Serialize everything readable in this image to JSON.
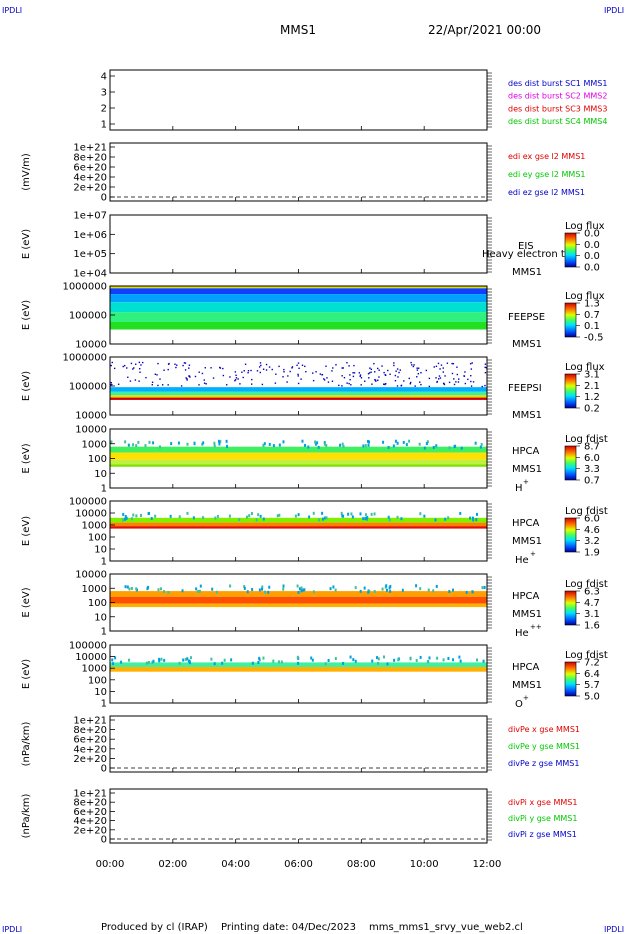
{
  "header": {
    "corner_label": "IPDLI",
    "spacecraft": "MMS1",
    "datetime": "22/Apr/2021 00:00"
  },
  "footer": {
    "produced_by": "Produced by cl (IRAP)",
    "printing_date": "Printing date: 04/Dec/2023",
    "script_name": "mms_mms1_srvy_vue_web2.cl"
  },
  "x_axis": {
    "ticks": [
      "00:00",
      "02:00",
      "04:00",
      "06:00",
      "08:00",
      "10:00",
      "12:00"
    ],
    "range_hours": [
      0,
      12
    ]
  },
  "colors": {
    "blue": "#0000c8",
    "magenta": "#e000e0",
    "red": "#e00000",
    "green": "#00c800"
  },
  "chart_data": [
    {
      "id": "p1",
      "type": "line",
      "ylabel": "",
      "yticks": [
        "4",
        "3",
        "2",
        "1"
      ],
      "series": [
        {
          "name": "des dist burst SC1 MMS1",
          "color": "#0000c8",
          "values": []
        },
        {
          "name": "des dist burst SC2 MMS2",
          "color": "#e000e0",
          "values": []
        },
        {
          "name": "des dist burst SC3 MMS3",
          "color": "#e00000",
          "values": []
        },
        {
          "name": "des dist burst SC4 MMS4",
          "color": "#00c800",
          "values": []
        }
      ]
    },
    {
      "id": "p2",
      "type": "line",
      "ylabel": "(mV/m)",
      "yticks": [
        "1e+21",
        "8e+20",
        "6e+20",
        "4e+20",
        "2e+20",
        "0"
      ],
      "series": [
        {
          "name": "edi ex gse l2 MMS1",
          "color": "#e00000",
          "values": []
        },
        {
          "name": "edi ey gse l2 MMS1",
          "color": "#00c800",
          "values": []
        },
        {
          "name": "edi ez gse l2 MMS1",
          "color": "#0000c8",
          "values": []
        }
      ]
    },
    {
      "id": "p3",
      "type": "heatmap",
      "ylabel": "E (eV)",
      "yticks": [
        "1e+07",
        "1e+06",
        "1e+05",
        "1e+04"
      ],
      "instrument": [
        "EIS",
        "MMS1"
      ],
      "extra_label": "Heavy electron tof",
      "colorbar_title": "Log flux",
      "colorbar_ticks": [
        "0.0",
        "0.0",
        "0.0",
        "0.0"
      ]
    },
    {
      "id": "p4",
      "type": "heatmap",
      "ylabel": "E (eV)",
      "yticks": [
        "1000000",
        "100000",
        "10000"
      ],
      "instrument": [
        "FEEPSE",
        "MMS1"
      ],
      "colorbar_title": "Log flux",
      "colorbar_ticks": [
        "1.3",
        "0.7",
        "0.1",
        "-0.5"
      ]
    },
    {
      "id": "p5",
      "type": "heatmap",
      "ylabel": "E (eV)",
      "yticks": [
        "1000000",
        "100000",
        "10000"
      ],
      "instrument": [
        "FEEPSI",
        "MMS1"
      ],
      "colorbar_title": "Log flux",
      "colorbar_ticks": [
        "3.1",
        "2.1",
        "1.2",
        "0.2"
      ]
    },
    {
      "id": "p6",
      "type": "heatmap",
      "ylabel": "E (eV)",
      "yticks": [
        "10000",
        "1000",
        "100",
        "10",
        "1"
      ],
      "instrument": [
        "HPCA",
        "MMS1"
      ],
      "species": "H",
      "species_sup": "+",
      "colorbar_title": "Log fdist",
      "colorbar_ticks": [
        "8.7",
        "6.0",
        "3.3",
        "0.7"
      ]
    },
    {
      "id": "p7",
      "type": "heatmap",
      "ylabel": "E (eV)",
      "yticks": [
        "100000",
        "10000",
        "1000",
        "100",
        "10",
        "1"
      ],
      "instrument": [
        "HPCA",
        "MMS1"
      ],
      "species": "He",
      "species_sup": "+",
      "colorbar_title": "Log fdist",
      "colorbar_ticks": [
        "6.0",
        "4.6",
        "3.2",
        "1.9"
      ]
    },
    {
      "id": "p8",
      "type": "heatmap",
      "ylabel": "E (eV)",
      "yticks": [
        "10000",
        "1000",
        "100",
        "10",
        "1"
      ],
      "instrument": [
        "HPCA",
        "MMS1"
      ],
      "species": "He",
      "species_sup": "++",
      "colorbar_title": "Log fdist",
      "colorbar_ticks": [
        "6.3",
        "4.7",
        "3.1",
        "1.6"
      ]
    },
    {
      "id": "p9",
      "type": "heatmap",
      "ylabel": "E (eV)",
      "yticks": [
        "100000",
        "10000",
        "1000",
        "100",
        "10",
        "1"
      ],
      "instrument": [
        "HPCA",
        "MMS1"
      ],
      "species": "O",
      "species_sup": "+",
      "colorbar_title": "Log fdist",
      "colorbar_ticks": [
        "7.2",
        "6.4",
        "5.7",
        "5.0"
      ]
    },
    {
      "id": "p10",
      "type": "line",
      "ylabel": "(nPa/km)",
      "yticks": [
        "1e+21",
        "8e+20",
        "6e+20",
        "4e+20",
        "2e+20",
        "0"
      ],
      "series": [
        {
          "name": "divPe x gse MMS1",
          "color": "#e00000",
          "values": []
        },
        {
          "name": "divPe y gse MMS1",
          "color": "#00c800",
          "values": []
        },
        {
          "name": "divPe z gse MMS1",
          "color": "#0000c8",
          "values": []
        }
      ]
    },
    {
      "id": "p11",
      "type": "line",
      "ylabel": "(nPa/km)",
      "yticks": [
        "1e+21",
        "8e+20",
        "6e+20",
        "4e+20",
        "2e+20",
        "0"
      ],
      "series": [
        {
          "name": "divPi x gse MMS1",
          "color": "#e00000",
          "values": []
        },
        {
          "name": "divPi y gse MMS1",
          "color": "#00c800",
          "values": []
        },
        {
          "name": "divPi z gse MMS1",
          "color": "#0000c8",
          "values": []
        }
      ]
    }
  ]
}
